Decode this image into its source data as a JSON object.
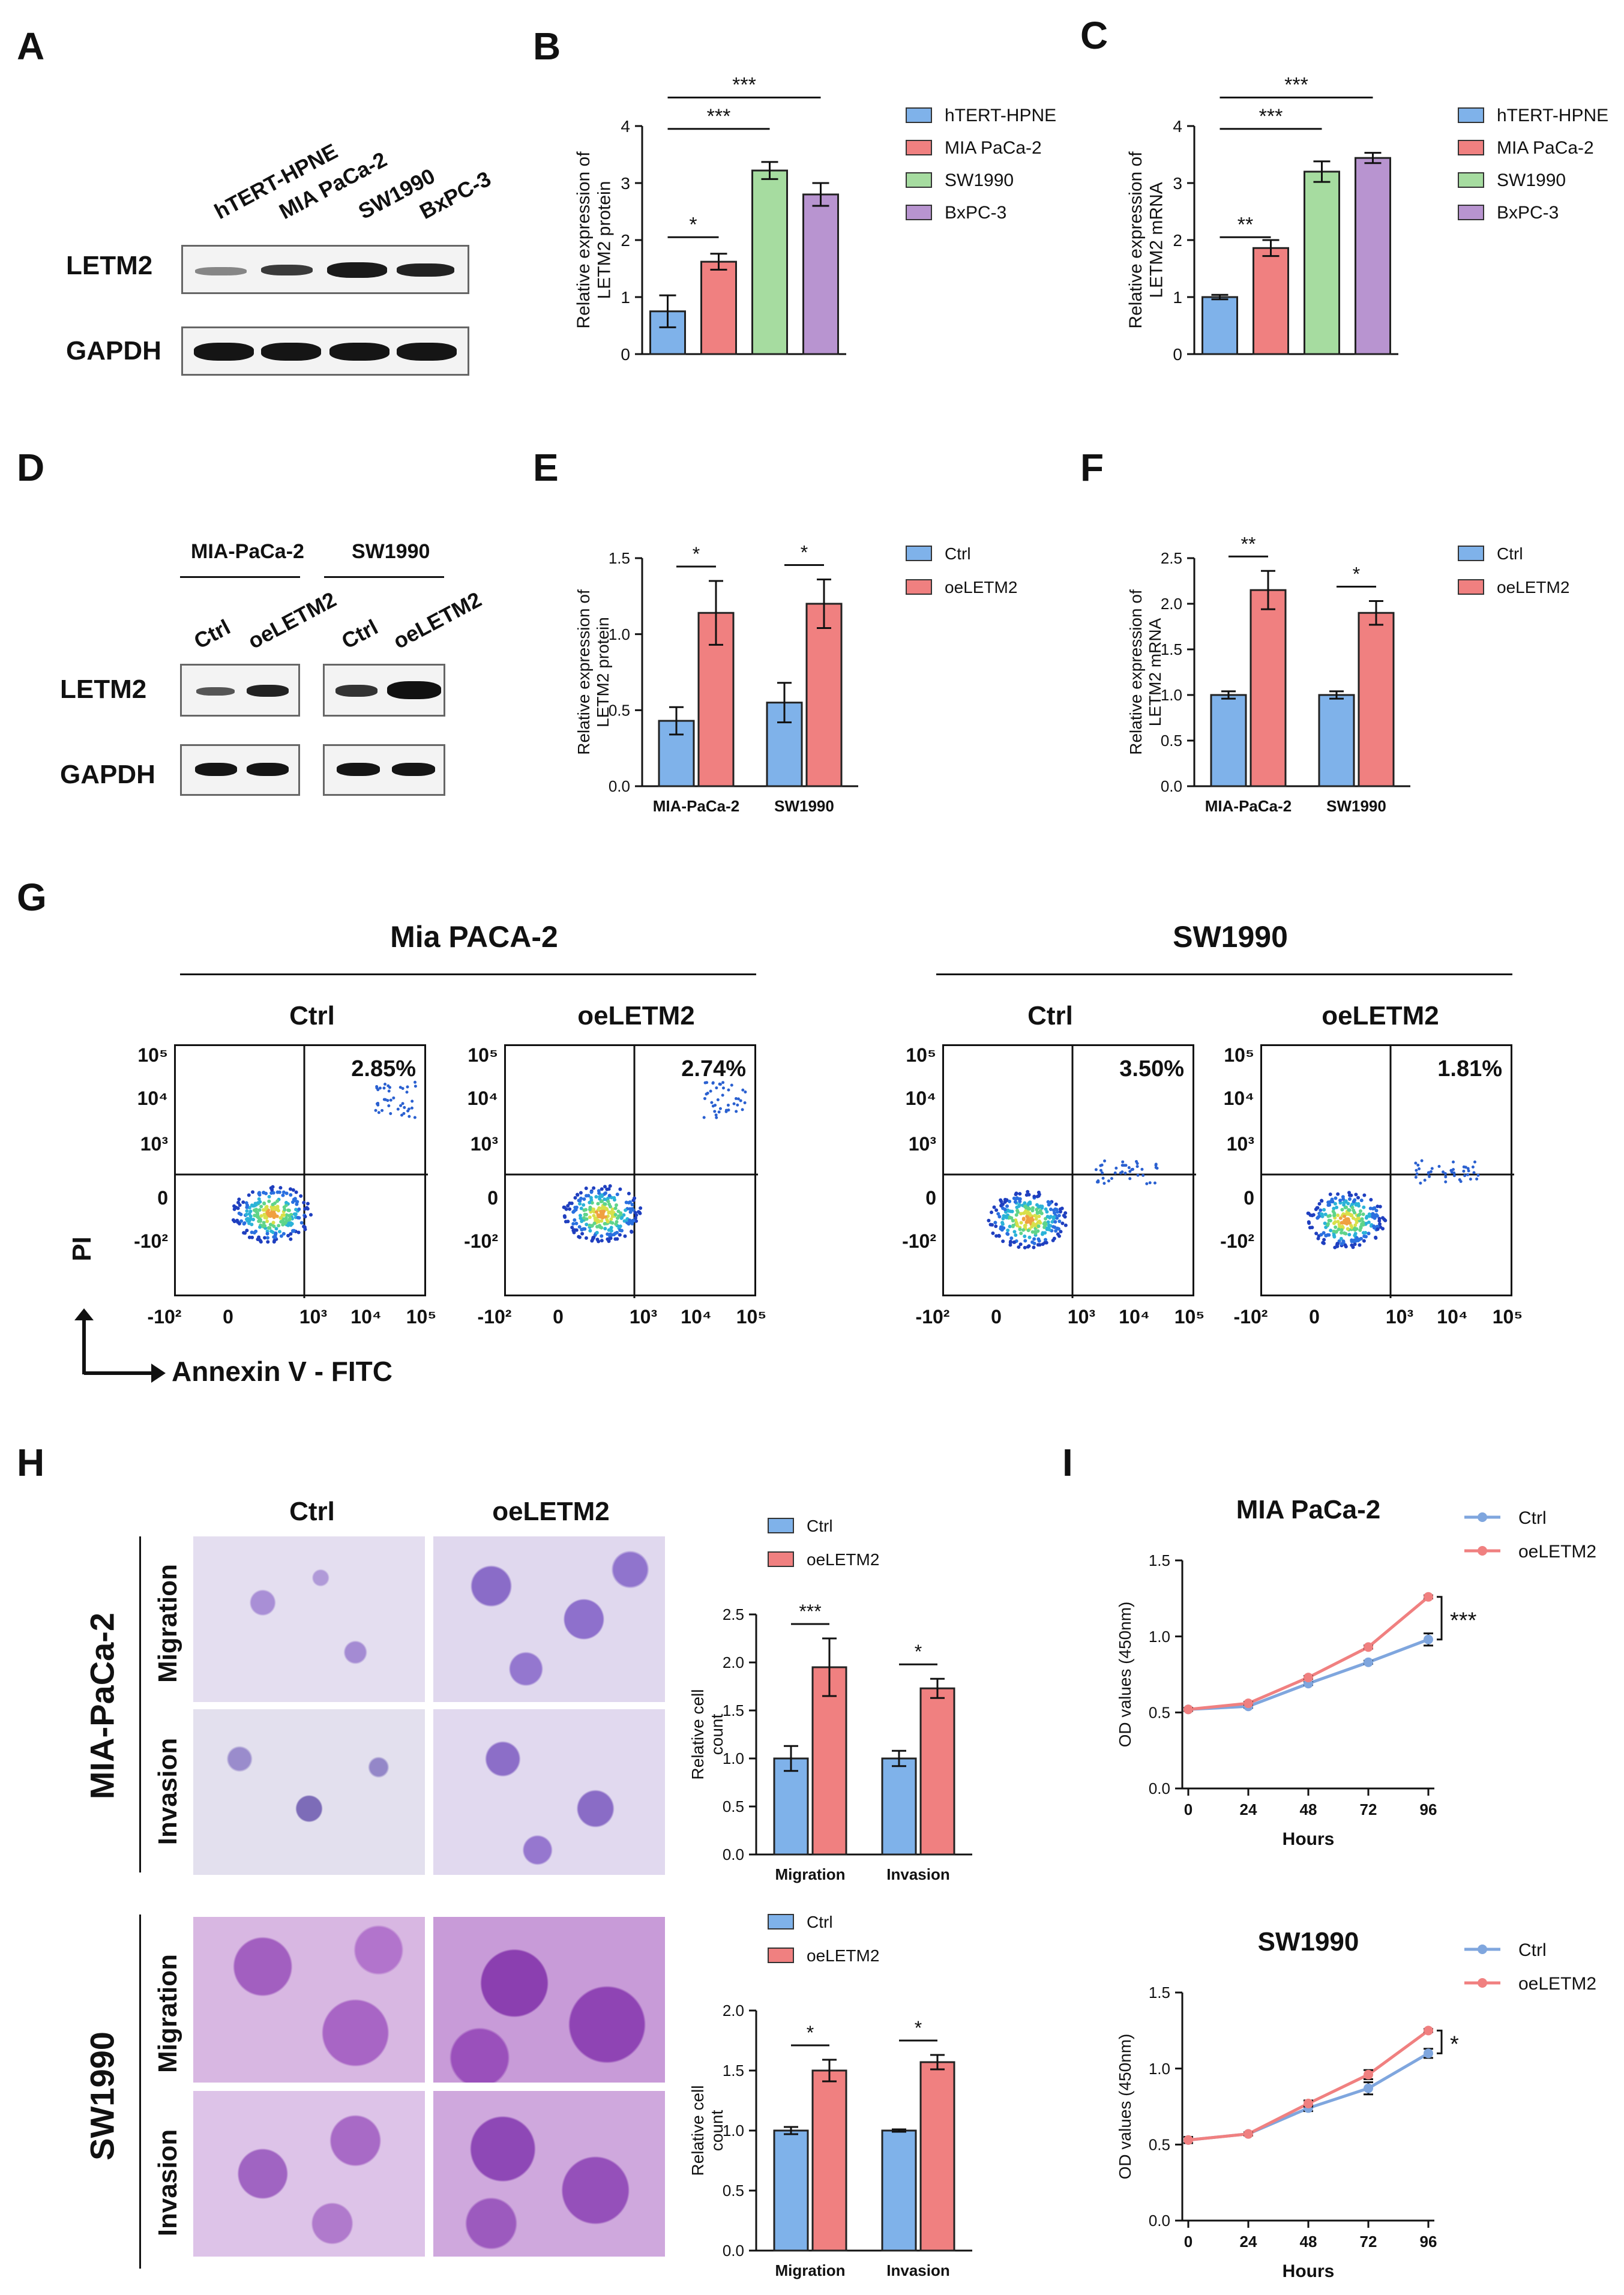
{
  "panels": {
    "A": {
      "label": "A",
      "columns": [
        "hTERT-HPNE",
        "MIA PaCa-2",
        "SW1990",
        "BxPC-3"
      ],
      "rows": [
        "LETM2",
        "GAPDH"
      ]
    },
    "D": {
      "label": "D",
      "groups": [
        "MIA-PaCa-2",
        "SW1990"
      ],
      "lanes": [
        "Ctrl",
        "oeLETM2",
        "Ctrl",
        "oeLETM2"
      ],
      "rows": [
        "LETM2",
        "GAPDH"
      ]
    },
    "G": {
      "label": "G",
      "groups": [
        "Mia PACA-2",
        "SW1990"
      ],
      "conditions": [
        "Ctrl",
        "oeLETM2",
        "Ctrl",
        "oeLETM2"
      ],
      "percents": [
        "2.85%",
        "2.74%",
        "3.50%",
        "1.81%"
      ],
      "ylabel": "PI",
      "xlabel": "Annexin V - FITC",
      "yticks": [
        "10⁵",
        "10⁴",
        "10³",
        "0",
        "-10²"
      ],
      "xticks": [
        "-10²",
        "0",
        "10³",
        "10⁴",
        "10⁵"
      ]
    },
    "H": {
      "label": "H",
      "columns": [
        "Ctrl",
        "oeLETM2"
      ],
      "lines": [
        "MIA-PaCa-2",
        "SW1990"
      ],
      "assays": [
        "Migration",
        "Invasion"
      ]
    }
  },
  "chart_data": [
    {
      "id": "B",
      "label": "B",
      "type": "bar",
      "ylabel": "Relative expression of LETM2 protein",
      "ylim": [
        0,
        4
      ],
      "yticks": [
        "0",
        "1",
        "2",
        "3",
        "4"
      ],
      "categories": [
        "hTERT-HPNE",
        "MIA PaCa-2",
        "SW1990",
        "BxPC-3"
      ],
      "values": [
        0.75,
        1.62,
        3.22,
        2.8
      ],
      "errors": [
        0.28,
        0.14,
        0.15,
        0.2
      ],
      "colors": [
        "#7fb2ea",
        "#f08080",
        "#a6dca0",
        "#b894d0"
      ],
      "sig": [
        {
          "from": 0,
          "to": 1,
          "text": "*"
        },
        {
          "from": 0,
          "to": 2,
          "text": "***"
        },
        {
          "from": 0,
          "to": 3,
          "text": "***"
        }
      ],
      "legend": [
        "hTERT-HPNE",
        "MIA PaCa-2",
        "SW1990",
        "BxPC-3"
      ]
    },
    {
      "id": "C",
      "label": "C",
      "type": "bar",
      "ylabel": "Relative expression of LETM2 mRNA",
      "ylim": [
        0,
        4
      ],
      "yticks": [
        "0",
        "1",
        "2",
        "3",
        "4"
      ],
      "categories": [
        "hTERT-HPNE",
        "MIA PaCa-2",
        "SW1990",
        "BxPC-3"
      ],
      "values": [
        1.0,
        1.86,
        3.2,
        3.44
      ],
      "errors": [
        0.04,
        0.14,
        0.18,
        0.09
      ],
      "colors": [
        "#7fb2ea",
        "#f08080",
        "#a6dca0",
        "#b894d0"
      ],
      "sig": [
        {
          "from": 0,
          "to": 1,
          "text": "**"
        },
        {
          "from": 0,
          "to": 2,
          "text": "***"
        },
        {
          "from": 0,
          "to": 3,
          "text": "***"
        }
      ],
      "legend": [
        "hTERT-HPNE",
        "MIA PaCa-2",
        "SW1990",
        "BxPC-3"
      ]
    },
    {
      "id": "E",
      "label": "E",
      "type": "grouped-bar",
      "ylabel": "Relative expression of LETM2 protein",
      "ylim": [
        0,
        1.5
      ],
      "yticks": [
        "0.0",
        "0.5",
        "1.0",
        "1.5"
      ],
      "categories": [
        "MIA-PaCa-2",
        "SW1990"
      ],
      "series": [
        {
          "name": "Ctrl",
          "color": "#7fb2ea",
          "values": [
            0.43,
            0.55
          ],
          "errors": [
            0.09,
            0.13
          ]
        },
        {
          "name": "oeLETM2",
          "color": "#f08080",
          "values": [
            1.14,
            1.2
          ],
          "errors": [
            0.21,
            0.16
          ]
        }
      ],
      "sig": [
        "*",
        "*"
      ]
    },
    {
      "id": "F",
      "label": "F",
      "type": "grouped-bar",
      "ylabel": "Relative expression of LETM2 mRNA",
      "ylim": [
        0,
        2.5
      ],
      "yticks": [
        "0.0",
        "0.5",
        "1.0",
        "1.5",
        "2.0",
        "2.5"
      ],
      "categories": [
        "MIA-PaCa-2",
        "SW1990"
      ],
      "series": [
        {
          "name": "Ctrl",
          "color": "#7fb2ea",
          "values": [
            1.0,
            1.0
          ],
          "errors": [
            0.04,
            0.04
          ]
        },
        {
          "name": "oeLETM2",
          "color": "#f08080",
          "values": [
            2.15,
            1.9
          ],
          "errors": [
            0.21,
            0.13
          ]
        }
      ],
      "sig": [
        "**",
        "*"
      ]
    },
    {
      "id": "H1",
      "type": "grouped-bar",
      "ylabel": "Relative cell count",
      "ylim": [
        0,
        2.5
      ],
      "yticks": [
        "0.0",
        "0.5",
        "1.0",
        "1.5",
        "2.0",
        "2.5"
      ],
      "categories": [
        "Migration",
        "Invasion"
      ],
      "series": [
        {
          "name": "Ctrl",
          "color": "#7fb2ea",
          "values": [
            1.0,
            1.0
          ],
          "errors": [
            0.13,
            0.08
          ]
        },
        {
          "name": "oeLETM2",
          "color": "#f08080",
          "values": [
            1.95,
            1.73
          ],
          "errors": [
            0.3,
            0.1
          ]
        }
      ],
      "sig": [
        "***",
        "*"
      ]
    },
    {
      "id": "H2",
      "type": "grouped-bar",
      "ylabel": "Relative cell count",
      "ylim": [
        0,
        2.0
      ],
      "yticks": [
        "0.0",
        "0.5",
        "1.0",
        "1.5",
        "2.0"
      ],
      "categories": [
        "Migration",
        "Invasion"
      ],
      "series": [
        {
          "name": "Ctrl",
          "color": "#7fb2ea",
          "values": [
            1.0,
            1.0
          ],
          "errors": [
            0.03,
            0.01
          ]
        },
        {
          "name": "oeLETM2",
          "color": "#f08080",
          "values": [
            1.5,
            1.57
          ],
          "errors": [
            0.09,
            0.06
          ]
        }
      ],
      "sig": [
        "*",
        "*"
      ]
    },
    {
      "id": "I1",
      "label": "I",
      "type": "line",
      "title": "MIA PaCa-2",
      "xlabel": "Hours",
      "ylabel": "OD values (450nm)",
      "ylim": [
        0,
        1.5
      ],
      "yticks": [
        "0.0",
        "0.5",
        "1.0",
        "1.5"
      ],
      "x": [
        0,
        24,
        48,
        72,
        96
      ],
      "series": [
        {
          "name": "Ctrl",
          "color": "#7fa6de",
          "values": [
            0.52,
            0.54,
            0.69,
            0.83,
            0.98
          ],
          "errors": [
            0.01,
            0.01,
            0.01,
            0.01,
            0.04
          ]
        },
        {
          "name": "oeLETM2",
          "color": "#f08080",
          "values": [
            0.52,
            0.56,
            0.73,
            0.93,
            1.26
          ],
          "errors": [
            0.01,
            0.01,
            0.01,
            0.01,
            0.01
          ]
        }
      ],
      "sig": "***"
    },
    {
      "id": "I2",
      "type": "line",
      "title": "SW1990",
      "xlabel": "Hours",
      "ylabel": "OD values (450nm)",
      "ylim": [
        0,
        1.5
      ],
      "yticks": [
        "0.0",
        "0.5",
        "1.0",
        "1.5"
      ],
      "x": [
        0,
        24,
        48,
        72,
        96
      ],
      "series": [
        {
          "name": "Ctrl",
          "color": "#7fa6de",
          "values": [
            0.53,
            0.57,
            0.74,
            0.87,
            1.1
          ],
          "errors": [
            0.02,
            0.01,
            0.02,
            0.04,
            0.03
          ]
        },
        {
          "name": "oeLETM2",
          "color": "#f08080",
          "values": [
            0.53,
            0.57,
            0.77,
            0.96,
            1.25
          ],
          "errors": [
            0.02,
            0.01,
            0.02,
            0.03,
            0.01
          ]
        }
      ],
      "sig": "*"
    }
  ]
}
